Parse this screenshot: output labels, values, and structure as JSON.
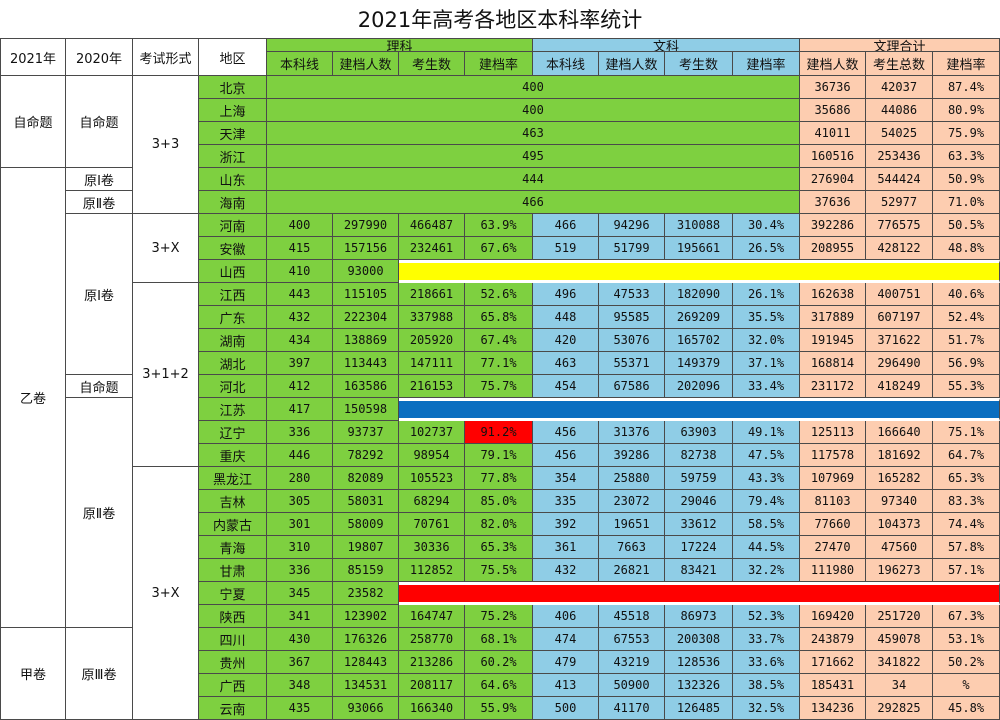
{
  "title": "2021年高考各地区本科率统计",
  "colors": {
    "science": "#7ed040",
    "liberal": "#8fcde6",
    "combined": "#fdcdb0",
    "white": "#ffffff",
    "yellow": "#ffff00",
    "blue": "#0a6ec0",
    "red": "#ff0000"
  },
  "headers": {
    "y2021": "2021年",
    "y2020": "2020年",
    "exam_format": "考试形式",
    "region": "地区",
    "science": "理科",
    "liberal": "文科",
    "combined": "文理合计",
    "sub_science": [
      "本科线",
      "建档人数",
      "考生数",
      "建档率"
    ],
    "sub_liberal": [
      "本科线",
      "建档人数",
      "考生数",
      "建档率"
    ],
    "sub_combined": [
      "建档人数",
      "考生总数",
      "建档率"
    ]
  },
  "groups2021": [
    {
      "label": "自命题",
      "rows": [
        0,
        3
      ]
    },
    {
      "label": "乙卷",
      "rows": [
        4,
        23
      ]
    },
    {
      "label": "甲卷",
      "rows": [
        24,
        27
      ]
    }
  ],
  "groups2020": [
    {
      "label": "自命题",
      "rows": [
        0,
        3
      ]
    },
    {
      "label": "原Ⅰ卷",
      "rows": [
        4,
        4
      ]
    },
    {
      "label": "原Ⅱ卷",
      "rows": [
        5,
        5
      ]
    },
    {
      "label": "原Ⅰ卷",
      "rows": [
        6,
        12
      ]
    },
    {
      "label": "自命题",
      "rows": [
        13,
        13
      ]
    },
    {
      "label": "原Ⅱ卷",
      "rows": [
        14,
        23
      ]
    },
    {
      "label": "原Ⅲ卷",
      "rows": [
        24,
        27
      ]
    }
  ],
  "groupsExam": [
    {
      "label": "3+3",
      "rows": [
        0,
        5
      ]
    },
    {
      "label": "3+X",
      "rows": [
        6,
        8
      ]
    },
    {
      "label": "3+1+2",
      "rows": [
        9,
        16
      ]
    },
    {
      "label": "3+X",
      "rows": [
        17,
        27
      ]
    }
  ],
  "rows": [
    {
      "region": "北京",
      "merged": "400",
      "c": [
        "36736",
        "42037",
        "87.4%"
      ]
    },
    {
      "region": "上海",
      "merged": "400",
      "c": [
        "35686",
        "44086",
        "80.9%"
      ]
    },
    {
      "region": "天津",
      "merged": "463",
      "c": [
        "41011",
        "54025",
        "75.9%"
      ]
    },
    {
      "region": "浙江",
      "merged": "495",
      "c": [
        "160516",
        "253436",
        "63.3%"
      ]
    },
    {
      "region": "山东",
      "merged": "444",
      "c": [
        "276904",
        "544424",
        "50.9%"
      ]
    },
    {
      "region": "海南",
      "merged": "466",
      "c": [
        "37636",
        "52977",
        "71.0%"
      ]
    },
    {
      "region": "河南",
      "s": [
        "400",
        "297990",
        "466487",
        "63.9%"
      ],
      "l": [
        "466",
        "94296",
        "310088",
        "30.4%"
      ],
      "c": [
        "392286",
        "776575",
        "50.5%"
      ]
    },
    {
      "region": "安徽",
      "s": [
        "415",
        "157156",
        "232461",
        "67.6%"
      ],
      "l": [
        "519",
        "51799",
        "195661",
        "26.5%"
      ],
      "c": [
        "208955",
        "428122",
        "48.8%"
      ]
    },
    {
      "region": "山西",
      "s": [
        "410",
        "93000"
      ],
      "bar": "yellow"
    },
    {
      "region": "江西",
      "s": [
        "443",
        "115105",
        "218661",
        "52.6%"
      ],
      "l": [
        "496",
        "47533",
        "182090",
        "26.1%"
      ],
      "c": [
        "162638",
        "400751",
        "40.6%"
      ]
    },
    {
      "region": "广东",
      "s": [
        "432",
        "222304",
        "337988",
        "65.8%"
      ],
      "l": [
        "448",
        "95585",
        "269209",
        "35.5%"
      ],
      "c": [
        "317889",
        "607197",
        "52.4%"
      ]
    },
    {
      "region": "湖南",
      "s": [
        "434",
        "138869",
        "205920",
        "67.4%"
      ],
      "l": [
        "420",
        "53076",
        "165702",
        "32.0%"
      ],
      "c": [
        "191945",
        "371622",
        "51.7%"
      ]
    },
    {
      "region": "湖北",
      "s": [
        "397",
        "113443",
        "147111",
        "77.1%"
      ],
      "l": [
        "463",
        "55371",
        "149379",
        "37.1%"
      ],
      "c": [
        "168814",
        "296490",
        "56.9%"
      ]
    },
    {
      "region": "河北",
      "s": [
        "412",
        "163586",
        "216153",
        "75.7%"
      ],
      "l": [
        "454",
        "67586",
        "202096",
        "33.4%"
      ],
      "c": [
        "231172",
        "418249",
        "55.3%"
      ]
    },
    {
      "region": "江苏",
      "s": [
        "417",
        "150598"
      ],
      "bar": "blue"
    },
    {
      "region": "辽宁",
      "s": [
        "336",
        "93737",
        "102737",
        "91.2%"
      ],
      "l": [
        "456",
        "31376",
        "63903",
        "49.1%"
      ],
      "c": [
        "125113",
        "166640",
        "75.1%"
      ],
      "redRate": true
    },
    {
      "region": "重庆",
      "s": [
        "446",
        "78292",
        "98954",
        "79.1%"
      ],
      "l": [
        "456",
        "39286",
        "82738",
        "47.5%"
      ],
      "c": [
        "117578",
        "181692",
        "64.7%"
      ]
    },
    {
      "region": "黑龙江",
      "s": [
        "280",
        "82089",
        "105523",
        "77.8%"
      ],
      "l": [
        "354",
        "25880",
        "59759",
        "43.3%"
      ],
      "c": [
        "107969",
        "165282",
        "65.3%"
      ]
    },
    {
      "region": "吉林",
      "s": [
        "305",
        "58031",
        "68294",
        "85.0%"
      ],
      "l": [
        "335",
        "23072",
        "29046",
        "79.4%"
      ],
      "c": [
        "81103",
        "97340",
        "83.3%"
      ]
    },
    {
      "region": "内蒙古",
      "s": [
        "301",
        "58009",
        "70761",
        "82.0%"
      ],
      "l": [
        "392",
        "19651",
        "33612",
        "58.5%"
      ],
      "c": [
        "77660",
        "104373",
        "74.4%"
      ]
    },
    {
      "region": "青海",
      "s": [
        "310",
        "19807",
        "30336",
        "65.3%"
      ],
      "l": [
        "361",
        "7663",
        "17224",
        "44.5%"
      ],
      "c": [
        "27470",
        "47560",
        "57.8%"
      ]
    },
    {
      "region": "甘肃",
      "s": [
        "336",
        "85159",
        "112852",
        "75.5%"
      ],
      "l": [
        "432",
        "26821",
        "83421",
        "32.2%"
      ],
      "c": [
        "111980",
        "196273",
        "57.1%"
      ]
    },
    {
      "region": "宁夏",
      "s": [
        "345",
        "23582"
      ],
      "bar": "red"
    },
    {
      "region": "陕西",
      "s": [
        "341",
        "123902",
        "164747",
        "75.2%"
      ],
      "l": [
        "406",
        "45518",
        "86973",
        "52.3%"
      ],
      "c": [
        "169420",
        "251720",
        "67.3%"
      ]
    },
    {
      "region": "四川",
      "s": [
        "430",
        "176326",
        "258770",
        "68.1%"
      ],
      "l": [
        "474",
        "67553",
        "200308",
        "33.7%"
      ],
      "c": [
        "243879",
        "459078",
        "53.1%"
      ]
    },
    {
      "region": "贵州",
      "s": [
        "367",
        "128443",
        "213286",
        "60.2%"
      ],
      "l": [
        "479",
        "43219",
        "128536",
        "33.6%"
      ],
      "c": [
        "171662",
        "341822",
        "50.2%"
      ]
    },
    {
      "region": "广西",
      "s": [
        "348",
        "134531",
        "208117",
        "64.6%"
      ],
      "l": [
        "413",
        "50900",
        "132326",
        "38.5%"
      ],
      "c": [
        "185431",
        "34",
        "%"
      ]
    },
    {
      "region": "云南",
      "s": [
        "435",
        "93066",
        "166340",
        "55.9%"
      ],
      "l": [
        "500",
        "41170",
        "126485",
        "32.5%"
      ],
      "c": [
        "134236",
        "292825",
        "45.8%"
      ]
    }
  ]
}
